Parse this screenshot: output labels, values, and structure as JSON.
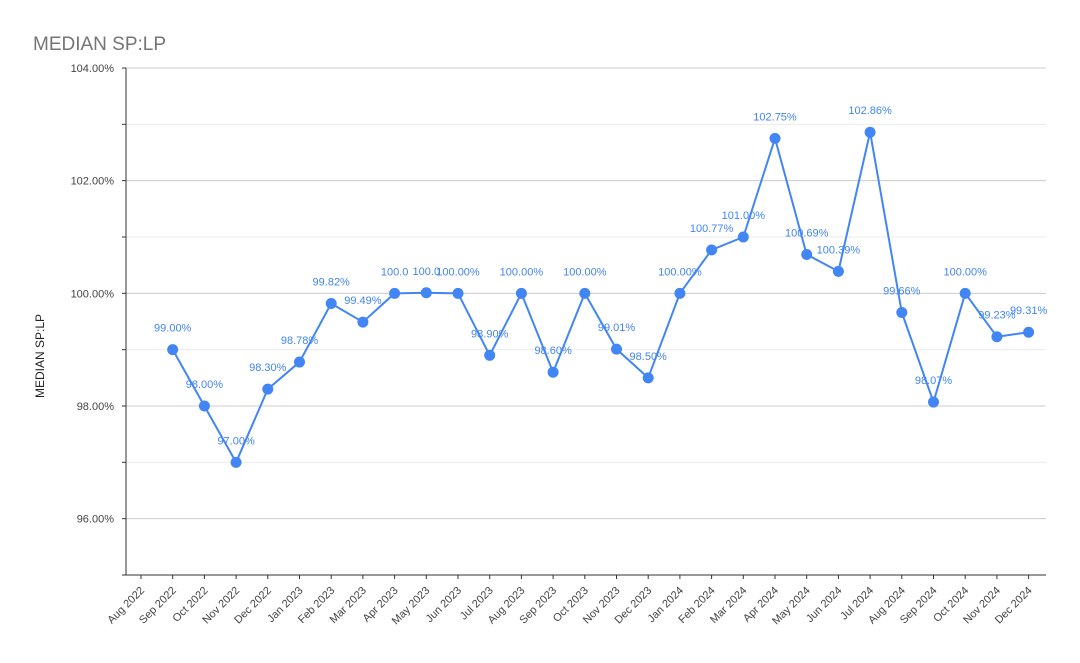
{
  "chart_data": {
    "type": "line",
    "title": "MEDIAN SP:LP",
    "xlabel": "",
    "ylabel": "MEDIAN SP:LP",
    "ylim": [
      95,
      104
    ],
    "yticks": [
      96,
      98,
      100,
      102,
      104
    ],
    "ytick_labels": [
      "96.00%",
      "98.00%",
      "100.00%",
      "102.00%",
      "104.00%"
    ],
    "grid": true,
    "color": "#4285f4",
    "categories": [
      "Aug 2022",
      "Sep 2022",
      "Oct 2022",
      "Nov 2022",
      "Dec 2022",
      "Jan 2023",
      "Feb 2023",
      "Mar 2023",
      "Apr 2023",
      "May 2023",
      "Jun 2023",
      "Jul 2023",
      "Aug 2023",
      "Sep 2023",
      "Oct 2023",
      "Nov 2023",
      "Dec 2023",
      "Jan 2024",
      "Feb 2024",
      "Mar 2024",
      "Apr 2024",
      "May 2024",
      "Jun 2024",
      "Jul 2024",
      "Aug 2024",
      "Sep 2024",
      "Oct 2024",
      "Nov 2024",
      "Dec 2024"
    ],
    "values": [
      null,
      99.0,
      98.0,
      97.0,
      98.3,
      98.78,
      99.82,
      99.49,
      100.0,
      100.01,
      100.0,
      98.9,
      100.0,
      98.6,
      100.0,
      99.01,
      98.5,
      100.0,
      100.77,
      101.0,
      102.75,
      100.69,
      100.39,
      102.86,
      99.66,
      98.07,
      100.0,
      99.23,
      99.31
    ],
    "data_labels": [
      "",
      "99.00%",
      "98.00%",
      "97.00%",
      "98.30%",
      "98.78%",
      "99.82%",
      "99.49%",
      "100.0",
      "100.0",
      "100.00%",
      "98.90%",
      "100.00%",
      "98.60%",
      "100.00%",
      "99.01%",
      "98.50%",
      "100.00%",
      "100.77%",
      "101.00%",
      "102.75%",
      "100.69%",
      "100.39%",
      "102.86%",
      "99.66%",
      "98.07%",
      "100.00%",
      "99.23%",
      "99.31%"
    ]
  }
}
